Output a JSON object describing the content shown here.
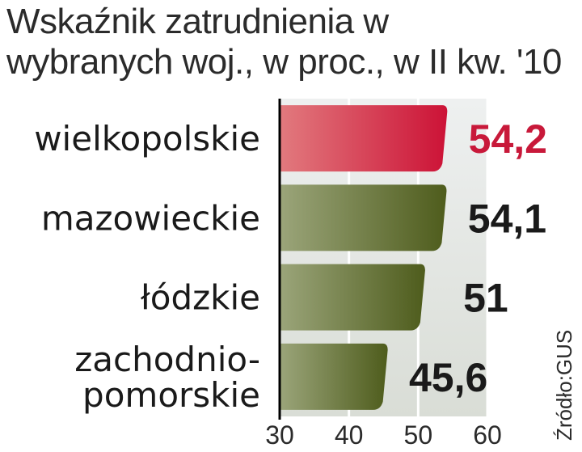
{
  "chart_data": {
    "type": "bar",
    "orientation": "horizontal",
    "title_lines": [
      "Wskaźnik zatrudnienia w",
      "wybranych woj., w proc., w II kw. '10"
    ],
    "categories": [
      [
        "wielkopolskie"
      ],
      [
        "mazowieckie"
      ],
      [
        "łódzkie"
      ],
      [
        "zachodnio-",
        "pomorskie"
      ]
    ],
    "values": [
      54.2,
      54.1,
      51,
      45.6
    ],
    "value_labels": [
      "54,2",
      "54,1",
      "51",
      "45,6"
    ],
    "highlight_index": 0,
    "xlim": [
      30,
      60
    ],
    "ticks": [
      30,
      40,
      50,
      60
    ],
    "grid": true,
    "source": "Źródło:GUS",
    "colors": {
      "highlight_bar": "#d4233f",
      "highlight_text": "#c8193a",
      "bar": "#6b7a2e",
      "value_text": "#1a1a1a",
      "plot_bg": "#e3e7e8",
      "grid": "#ffffff",
      "axis": "#000000"
    }
  }
}
